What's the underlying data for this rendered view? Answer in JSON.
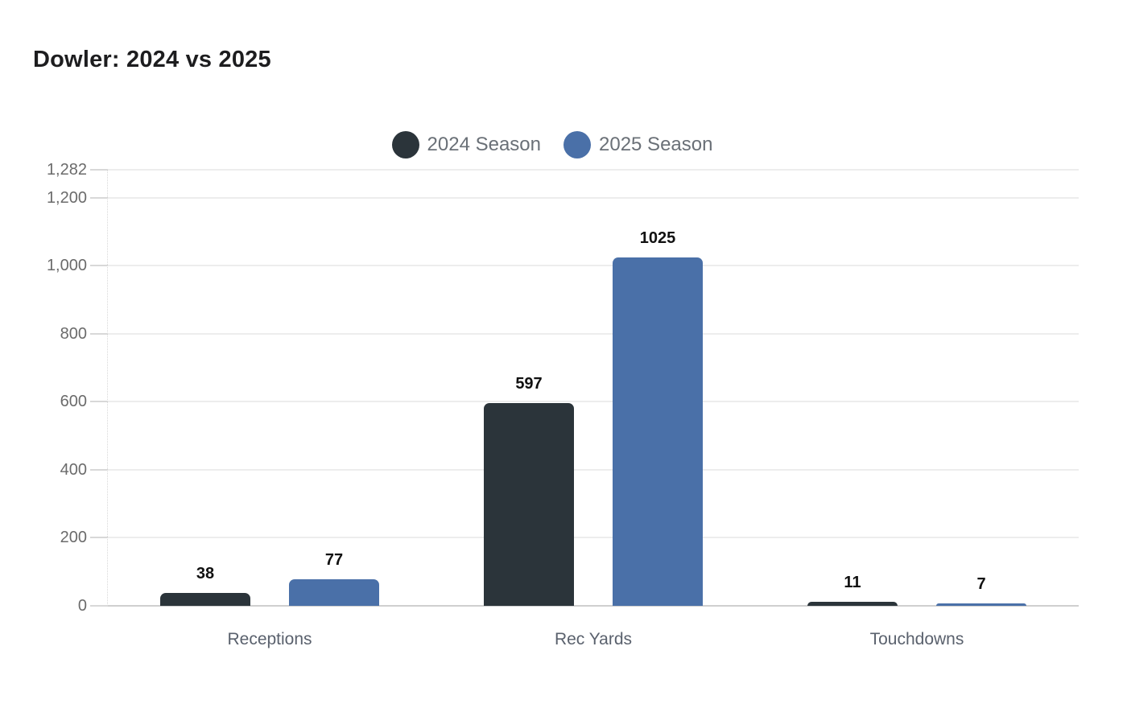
{
  "header": {
    "title": "Dowler: 2024 vs 2025"
  },
  "colors": {
    "background": "#ffffff",
    "series_2024": "#2b343a",
    "series_2025": "#4a70a8",
    "gridline": "#ededed",
    "baseline": "#cfcfcf",
    "tick_text": "#6b6b6b",
    "category_text": "#5a616d",
    "value_label_text": "#111111",
    "legend_text": "#6a7077",
    "title_text": "#1d1d1f"
  },
  "chart_data": {
    "type": "bar",
    "title": "Dowler: 2024 vs 2025",
    "categories": [
      "Receptions",
      "Rec Yards",
      "Touchdowns"
    ],
    "series": [
      {
        "name": "2024 Season",
        "color": "#2b343a",
        "values": [
          38,
          597,
          11
        ],
        "value_labels": [
          "38",
          "597",
          "11"
        ]
      },
      {
        "name": "2025 Season",
        "color": "#4a70a8",
        "values": [
          77,
          1025,
          7
        ],
        "value_labels": [
          "77",
          "1025",
          "7"
        ]
      }
    ],
    "ylim": [
      0,
      1282
    ],
    "yticks": [
      {
        "value": 1282,
        "label": "1,282"
      },
      {
        "value": 1200,
        "label": "1,200"
      },
      {
        "value": 1000,
        "label": "1,000"
      },
      {
        "value": 800,
        "label": "800"
      },
      {
        "value": 600,
        "label": "600"
      },
      {
        "value": 400,
        "label": "400"
      },
      {
        "value": 200,
        "label": "200"
      },
      {
        "value": 0,
        "label": "0"
      }
    ],
    "grid": "horizontal",
    "legend_position": "top-center",
    "legend_marker": "circle",
    "xlabel": "",
    "ylabel": ""
  }
}
